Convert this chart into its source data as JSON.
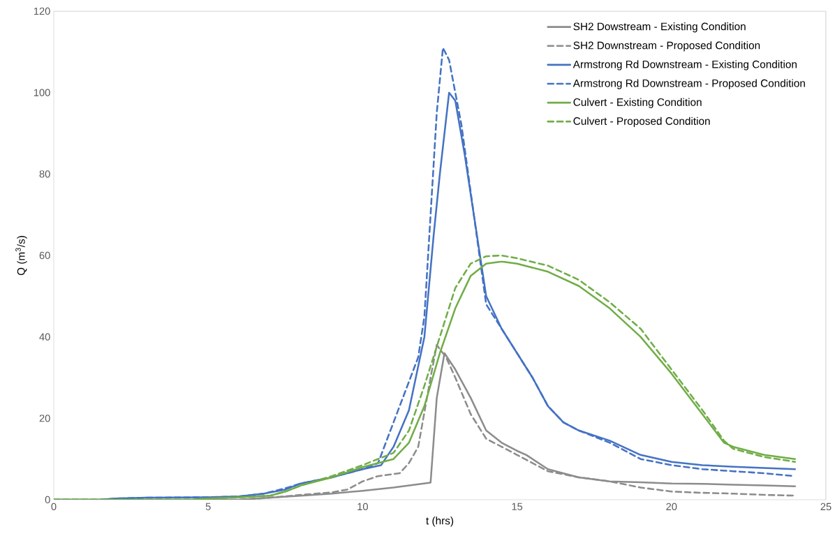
{
  "chart_data": {
    "type": "line",
    "xlabel": "t (hrs)",
    "ylabel": "Q (m$^{3}$/s)",
    "xlim": [
      0,
      25
    ],
    "ylim": [
      0,
      120
    ],
    "xticks": [
      0,
      5,
      10,
      15,
      20,
      25
    ],
    "yticks": [
      0,
      20,
      40,
      60,
      80,
      100,
      120
    ],
    "grid": false,
    "legend": "top right",
    "marker": "none",
    "series": [
      {
        "name": "SH2 Dowstream - Existing Condition",
        "color": "#8c8c8c",
        "line_style": "solid",
        "x": [
          0,
          6,
          7,
          8,
          9,
          10,
          11,
          12.2,
          12.4,
          12.65,
          13,
          13.5,
          14,
          14.5,
          15,
          15.3,
          16,
          17,
          18,
          19,
          20,
          21,
          22,
          23,
          24
        ],
        "values": [
          0,
          0,
          0.5,
          1,
          1.5,
          2.2,
          3,
          4.2,
          25,
          36,
          32,
          25,
          17,
          14,
          12,
          11,
          7.5,
          5.5,
          4.5,
          4.3,
          4,
          3.9,
          3.7,
          3.5,
          3.3
        ]
      },
      {
        "name": "SH2 Downstream - Proposed Condition",
        "color": "#8c8c8c",
        "line_style": "dashed",
        "x": [
          0,
          6,
          7,
          8,
          9,
          9.5,
          10,
          10.5,
          11.2,
          11.5,
          11.8,
          12.2,
          12.4,
          12.7,
          13,
          13.5,
          14,
          14.5,
          15,
          16,
          17,
          18,
          19,
          20,
          21,
          22,
          23,
          24
        ],
        "values": [
          0,
          0,
          0.5,
          1.2,
          1.8,
          2.5,
          4.5,
          5.8,
          6.5,
          9,
          13,
          30,
          38,
          35,
          30,
          21,
          15,
          13,
          11,
          7,
          5.5,
          4.5,
          3,
          2,
          1.7,
          1.5,
          1.2,
          1
        ]
      },
      {
        "name": "Armstrong Rd Downstream - Existing Condition",
        "color": "#4472c4",
        "line_style": "solid",
        "x": [
          0,
          1.5,
          2,
          3,
          5,
          6,
          6.8,
          7.5,
          8,
          9,
          10,
          10.6,
          11,
          11.5,
          12,
          12.3,
          12.5,
          12.8,
          13,
          13.3,
          13.6,
          14,
          14.5,
          15,
          15.5,
          16,
          16.5,
          17,
          18,
          19,
          20,
          21,
          22,
          23,
          24
        ],
        "values": [
          0,
          0,
          0.3,
          0.5,
          0.6,
          0.8,
          1.5,
          2.5,
          4,
          5.5,
          7.5,
          8.5,
          13,
          22,
          40,
          65,
          80,
          100,
          98,
          85,
          70,
          50,
          42,
          36,
          30,
          23,
          19,
          17,
          14.5,
          11,
          9.3,
          8.5,
          8.1,
          7.8,
          7.5
        ]
      },
      {
        "name": "Armstrong Rd Downstream - Proposed Condition",
        "color": "#4472c4",
        "line_style": "dashed",
        "x": [
          0,
          1.5,
          2,
          3,
          5,
          6,
          6.8,
          7.5,
          8,
          9,
          10,
          10.5,
          10.8,
          11.3,
          11.8,
          12,
          12.2,
          12.4,
          12.6,
          12.8,
          13.2,
          13.6,
          14,
          14.5,
          15,
          15.5,
          16,
          16.5,
          17,
          18,
          19,
          20,
          21,
          22,
          23,
          24
        ],
        "values": [
          0,
          0,
          0.3,
          0.5,
          0.6,
          0.8,
          1.5,
          2.8,
          4,
          5.5,
          7.5,
          9,
          15,
          25,
          35,
          45,
          70,
          95,
          111,
          108,
          92,
          70,
          48,
          42,
          36,
          30,
          23,
          19,
          17,
          14,
          10,
          8.5,
          7.5,
          7,
          6.5,
          5.8
        ]
      },
      {
        "name": "Culvert - Existing Condition",
        "color": "#70ad47",
        "line_style": "solid",
        "x": [
          0,
          4.5,
          5,
          6,
          7,
          7.5,
          8,
          9,
          10,
          11,
          11.5,
          12,
          12.5,
          13,
          13.5,
          14,
          14.5,
          15,
          16,
          17,
          18,
          19,
          20,
          21,
          21.7,
          22,
          23,
          24
        ],
        "values": [
          0,
          0,
          0.3,
          0.6,
          1,
          2,
          3.5,
          5.5,
          8,
          10,
          14,
          23,
          36,
          47,
          55,
          58,
          58.5,
          58,
          56,
          52.5,
          47,
          40,
          31,
          21,
          14,
          13,
          11,
          10
        ]
      },
      {
        "name": "Culvert - Proposed Condition",
        "color": "#70ad47",
        "line_style": "dashed",
        "x": [
          0,
          4.5,
          5,
          6,
          7,
          7.5,
          8,
          9,
          10,
          11,
          11.5,
          12,
          12.5,
          13,
          13.5,
          14,
          14.5,
          15,
          16,
          17,
          18,
          19,
          20,
          21,
          21.7,
          22,
          23,
          24
        ],
        "values": [
          0,
          0,
          0.3,
          0.6,
          1,
          2,
          3.5,
          5.8,
          8.5,
          11.5,
          17,
          28,
          40,
          52,
          58,
          59.8,
          60,
          59.3,
          57.5,
          54,
          48.5,
          42,
          32,
          22,
          14.5,
          12.5,
          10.5,
          9.3
        ]
      }
    ]
  }
}
